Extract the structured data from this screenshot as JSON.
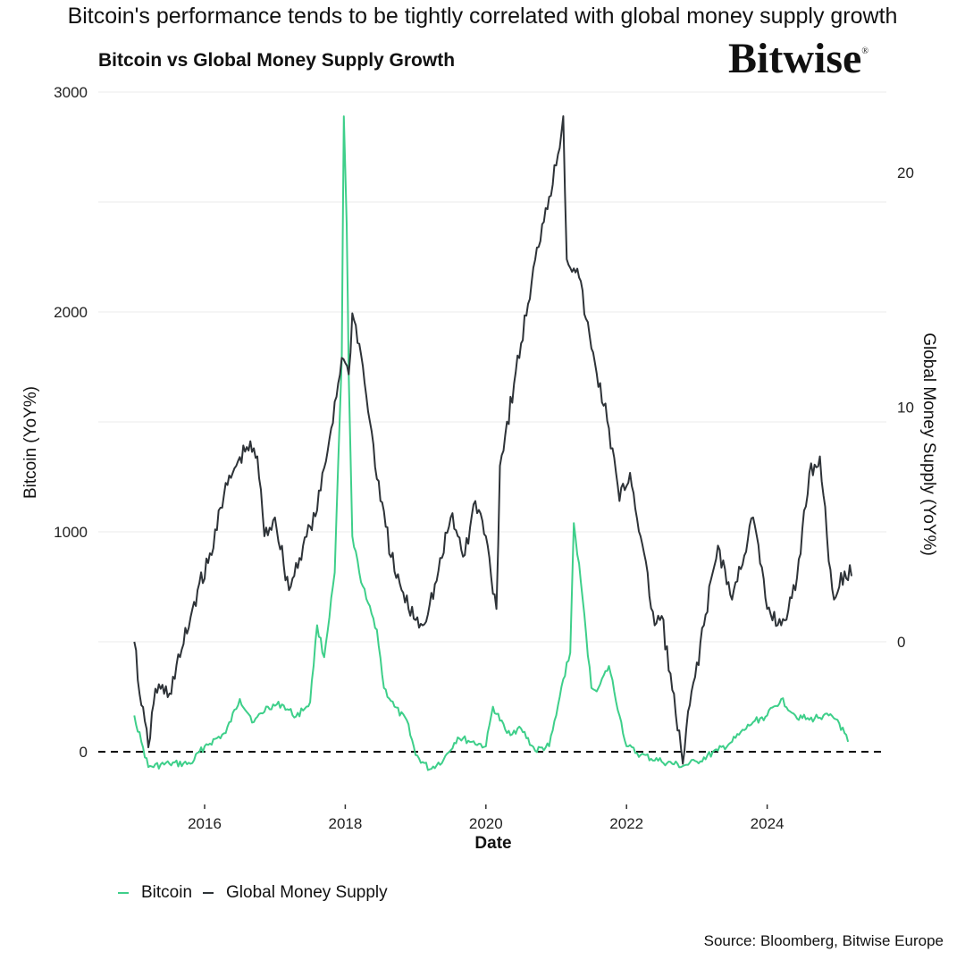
{
  "headline": "Bitcoin's performance tends to be tightly correlated with global money supply growth",
  "logo": {
    "text": "Bitwise",
    "mark": "®"
  },
  "source": "Source: Bloomberg, Bitwise Europe",
  "colors": {
    "bitcoin": "#3ecf8a",
    "money_supply": "#2e3338",
    "grid": "#ebebeb",
    "zero_line": "#000000"
  },
  "chart_data": {
    "type": "line",
    "title": "Bitcoin vs Global Money Supply Growth",
    "xlabel": "Date",
    "ylabel": "Bitcoin (YoY%)",
    "ylabel_right": "Global Money Supply (YoY%)",
    "xlim": [
      2015.0,
      2025.25
    ],
    "ylim": [
      -200,
      3000
    ],
    "ylim_right": [
      -9.4,
      22.6
    ],
    "x_ticks": [
      2016,
      2018,
      2020,
      2022,
      2024
    ],
    "x_tick_labels": [
      "2016",
      "2018",
      "2020",
      "2022",
      "2024"
    ],
    "y_ticks": [
      0,
      1000,
      2000,
      3000
    ],
    "y_tick_labels": [
      "0",
      "1000",
      "2000",
      "3000"
    ],
    "y_ticks_right": [
      0,
      10,
      20
    ],
    "y_tick_labels_right": [
      "0",
      "10",
      "20"
    ],
    "grid": true,
    "reference_line": {
      "axis": "left",
      "value": 0,
      "style": "dashed"
    },
    "legend": {
      "placement": "bottom-left",
      "entries": [
        "Bitcoin",
        "Global Money Supply"
      ]
    },
    "series": [
      {
        "name": "Bitcoin",
        "axis": "left",
        "x": [
          2015.0,
          2015.1,
          2015.2,
          2015.5,
          2015.8,
          2016.0,
          2016.3,
          2016.5,
          2016.7,
          2016.9,
          2017.1,
          2017.3,
          2017.5,
          2017.6,
          2017.7,
          2017.85,
          2017.95,
          2017.98,
          2018.02,
          2018.05,
          2018.1,
          2018.2,
          2018.3,
          2018.45,
          2018.55,
          2018.7,
          2018.9,
          2019.0,
          2019.2,
          2019.4,
          2019.6,
          2019.8,
          2020.0,
          2020.1,
          2020.3,
          2020.5,
          2020.7,
          2020.9,
          2021.0,
          2021.1,
          2021.2,
          2021.25,
          2021.35,
          2021.5,
          2021.6,
          2021.75,
          2021.9,
          2022.0,
          2022.2,
          2022.5,
          2022.8,
          2023.0,
          2023.3,
          2023.5,
          2023.8,
          2024.0,
          2024.2,
          2024.4,
          2024.6,
          2024.8,
          2025.0,
          2025.15
        ],
        "values": [
          165,
          45,
          -70,
          -55,
          -55,
          25,
          85,
          240,
          135,
          205,
          215,
          160,
          225,
          575,
          430,
          815,
          1790,
          2890,
          2400,
          1710,
          980,
          815,
          695,
          555,
          290,
          205,
          125,
          -15,
          -80,
          -35,
          65,
          45,
          25,
          205,
          85,
          105,
          5,
          25,
          165,
          330,
          450,
          1040,
          775,
          290,
          290,
          390,
          165,
          25,
          -15,
          -45,
          -65,
          -45,
          5,
          45,
          135,
          165,
          240,
          165,
          145,
          165,
          145,
          45
        ]
      },
      {
        "name": "Global Money Supply",
        "axis": "right",
        "x": [
          2015.0,
          2015.1,
          2015.2,
          2015.3,
          2015.5,
          2015.7,
          2015.9,
          2016.1,
          2016.2,
          2016.4,
          2016.6,
          2016.75,
          2016.85,
          2017.0,
          2017.2,
          2017.4,
          2017.6,
          2017.8,
          2017.95,
          2018.05,
          2018.1,
          2018.2,
          2018.35,
          2018.5,
          2018.7,
          2018.9,
          2019.1,
          2019.3,
          2019.5,
          2019.7,
          2019.85,
          2020.0,
          2020.15,
          2020.2,
          2020.4,
          2020.6,
          2020.8,
          2021.0,
          2021.1,
          2021.15,
          2021.3,
          2021.5,
          2021.75,
          2021.9,
          2022.05,
          2022.2,
          2022.4,
          2022.5,
          2022.7,
          2022.8,
          2022.9,
          2023.1,
          2023.3,
          2023.5,
          2023.8,
          2024.0,
          2024.2,
          2024.4,
          2024.6,
          2024.75,
          2024.85,
          2024.95,
          2025.1,
          2025.2
        ],
        "values": [
          0,
          -2.7,
          -4.5,
          -2.0,
          -2.2,
          -0.1,
          2.2,
          3.7,
          5.6,
          7.2,
          8.3,
          7.9,
          4.5,
          5.3,
          2.2,
          4.1,
          5.6,
          9.1,
          12.1,
          11.4,
          14.0,
          12.7,
          9.4,
          6.0,
          3.0,
          1.4,
          0.7,
          2.6,
          5.3,
          3.7,
          6.0,
          4.5,
          1.4,
          7.5,
          11.0,
          14.4,
          17.8,
          20.3,
          22.4,
          16.3,
          15.9,
          12.5,
          9.1,
          6.0,
          7.2,
          4.5,
          0.7,
          1.1,
          -3.1,
          -5.2,
          -2.7,
          0.7,
          4.1,
          1.8,
          5.3,
          1.4,
          0.7,
          2.2,
          7.2,
          7.9,
          4.5,
          1.8,
          3.0,
          2.8
        ]
      }
    ]
  }
}
